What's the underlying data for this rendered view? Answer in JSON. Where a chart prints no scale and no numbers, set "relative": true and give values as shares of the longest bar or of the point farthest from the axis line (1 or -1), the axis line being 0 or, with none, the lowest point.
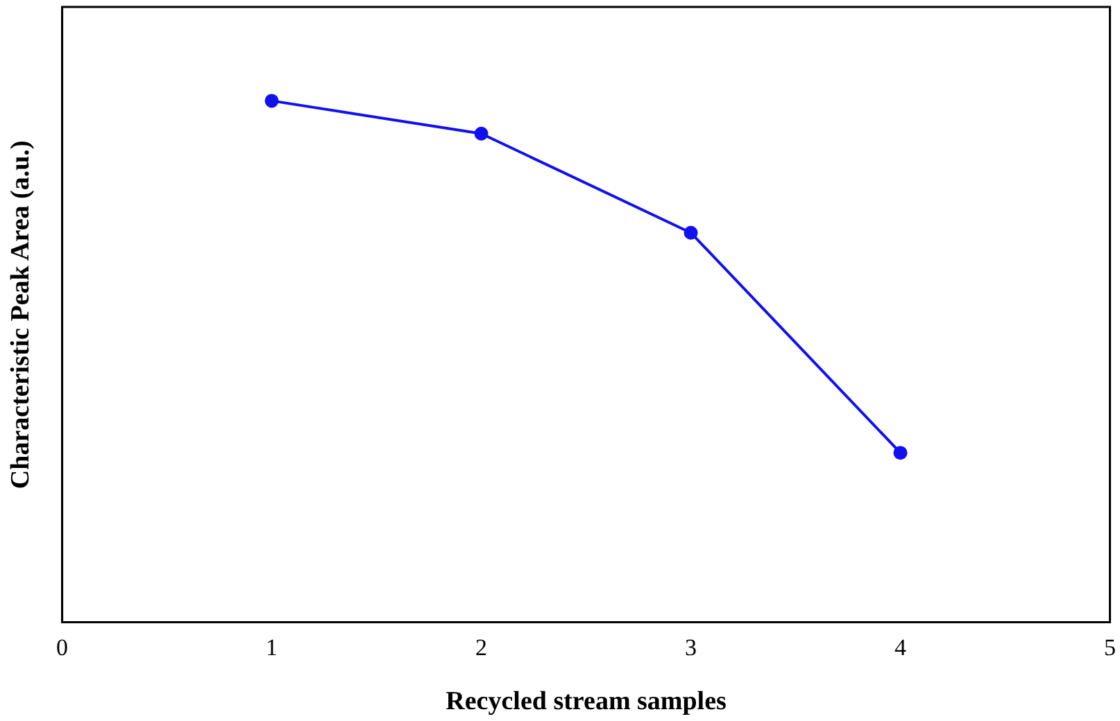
{
  "chart_data": {
    "type": "line",
    "relative": true,
    "xlabel": "Recycled stream samples",
    "ylabel": "Characteristic Peak Area (a.u.)",
    "x": [
      1,
      2,
      3,
      4
    ],
    "xlim": [
      0,
      5
    ],
    "xticks": [
      0,
      1,
      2,
      3,
      4,
      5
    ],
    "series": [
      {
        "color": "#1010f0",
        "values": [
          1,
          0.937,
          0.747,
          0.325
        ]
      }
    ],
    "grid": false,
    "legend": false,
    "marker": "circle",
    "line_style": "solid"
  }
}
